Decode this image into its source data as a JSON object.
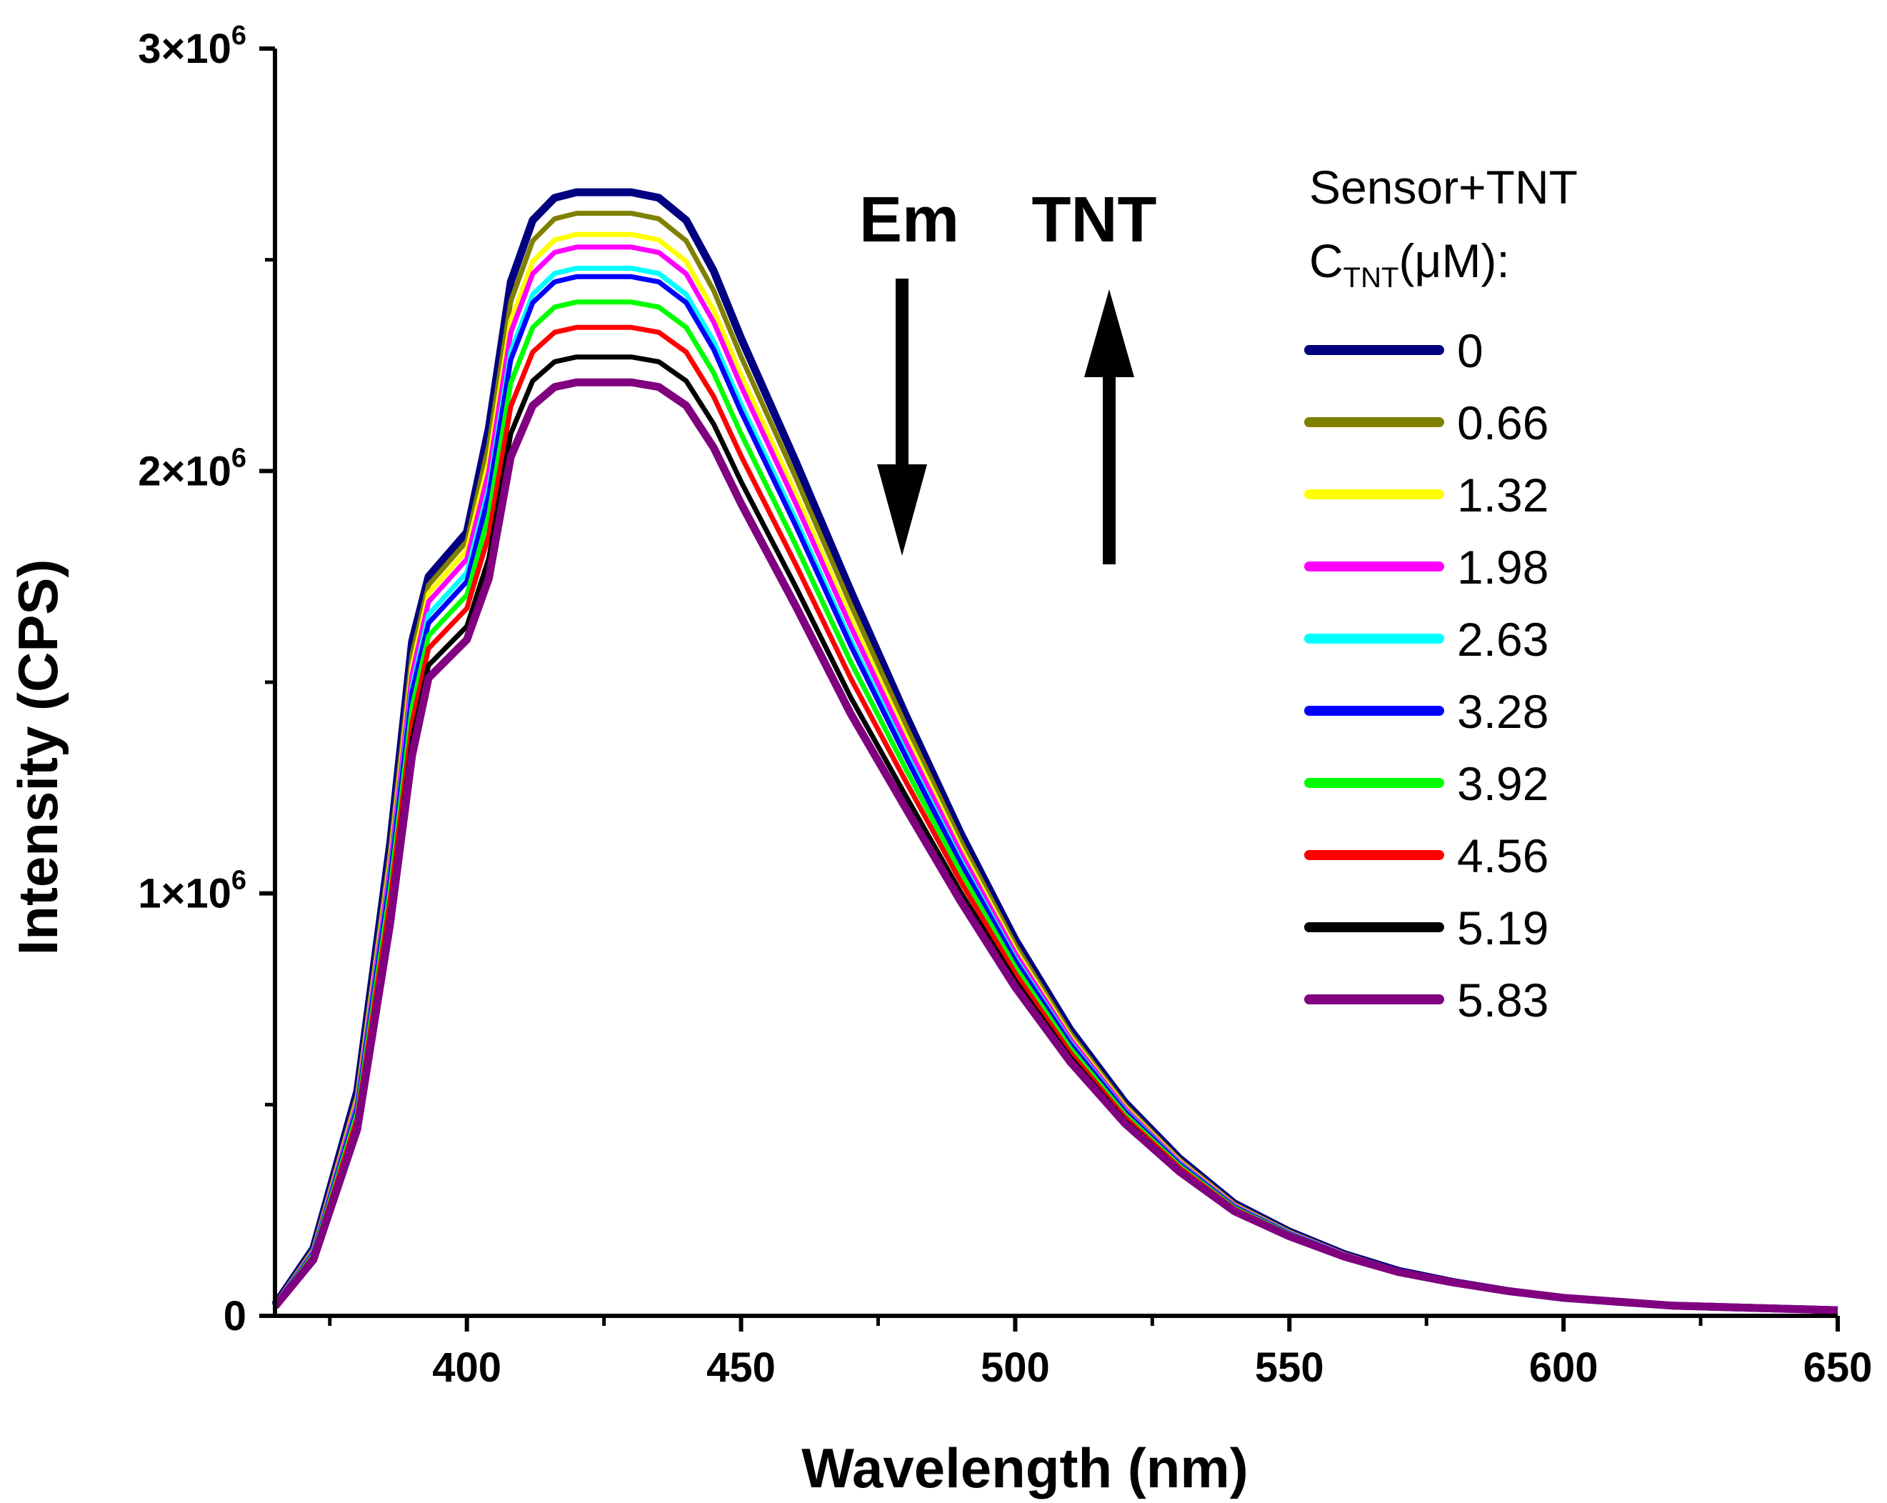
{
  "chart_data": {
    "type": "line",
    "title": "",
    "xlabel": "Wavelength (nm)",
    "ylabel": "Intensity (CPS)",
    "xlim": [
      365,
      650
    ],
    "ylim": [
      0,
      3000000
    ],
    "x_ticks": [
      "400",
      "450",
      "500",
      "550",
      "600",
      "650"
    ],
    "y_ticks": [
      {
        "value": 0,
        "base": "0",
        "exp": ""
      },
      {
        "value": 1000000,
        "base": "1×10",
        "exp": "6"
      },
      {
        "value": 2000000,
        "base": "2×10",
        "exp": "6"
      },
      {
        "value": 3000000,
        "base": "3×10",
        "exp": "6"
      }
    ],
    "grid": false,
    "legend": {
      "position": "right",
      "title_line1": "Sensor+TNT",
      "title_c": "C",
      "title_sub": "TNT",
      "title_unit": "(μM):"
    },
    "annotations": {
      "em_label": "Em",
      "em_direction": "down",
      "tnt_label": "TNT",
      "tnt_direction": "up"
    },
    "x": [
      365,
      372,
      380,
      386,
      390,
      393,
      396,
      400,
      404,
      408,
      412,
      416,
      420,
      425,
      430,
      435,
      440,
      445,
      450,
      460,
      470,
      480,
      490,
      500,
      510,
      520,
      530,
      540,
      550,
      560,
      570,
      580,
      590,
      600,
      620,
      650
    ],
    "series": [
      {
        "name": "0",
        "color": "#000080",
        "peak": 2660000,
        "shoulder": 1750000
      },
      {
        "name": "0.66",
        "color": "#808000",
        "peak": 2610000,
        "shoulder": 1730000
      },
      {
        "name": "1.32",
        "color": "#ffff00",
        "peak": 2560000,
        "shoulder": 1710000
      },
      {
        "name": "1.98",
        "color": "#ff00ff",
        "peak": 2530000,
        "shoulder": 1690000
      },
      {
        "name": "2.63",
        "color": "#00ffff",
        "peak": 2480000,
        "shoulder": 1660000
      },
      {
        "name": "3.28",
        "color": "#0000ff",
        "peak": 2460000,
        "shoulder": 1640000
      },
      {
        "name": "3.92",
        "color": "#00ff00",
        "peak": 2400000,
        "shoulder": 1610000
      },
      {
        "name": "4.56",
        "color": "#ff0000",
        "peak": 2340000,
        "shoulder": 1580000
      },
      {
        "name": "5.19",
        "color": "#000000",
        "peak": 2270000,
        "shoulder": 1540000
      },
      {
        "name": "5.83",
        "color": "#800080",
        "peak": 2210000,
        "shoulder": 1510000
      }
    ],
    "base_shape": [
      0.01,
      0.06,
      0.2,
      0.42,
      0.6,
      0.655,
      0.665,
      0.7,
      0.79,
      0.92,
      0.975,
      0.995,
      1.0,
      1.0,
      1.0,
      0.995,
      0.975,
      0.93,
      0.87,
      0.76,
      0.645,
      0.535,
      0.43,
      0.335,
      0.255,
      0.19,
      0.14,
      0.1,
      0.075,
      0.055,
      0.04,
      0.03,
      0.022,
      0.016,
      0.009,
      0.005
    ]
  }
}
